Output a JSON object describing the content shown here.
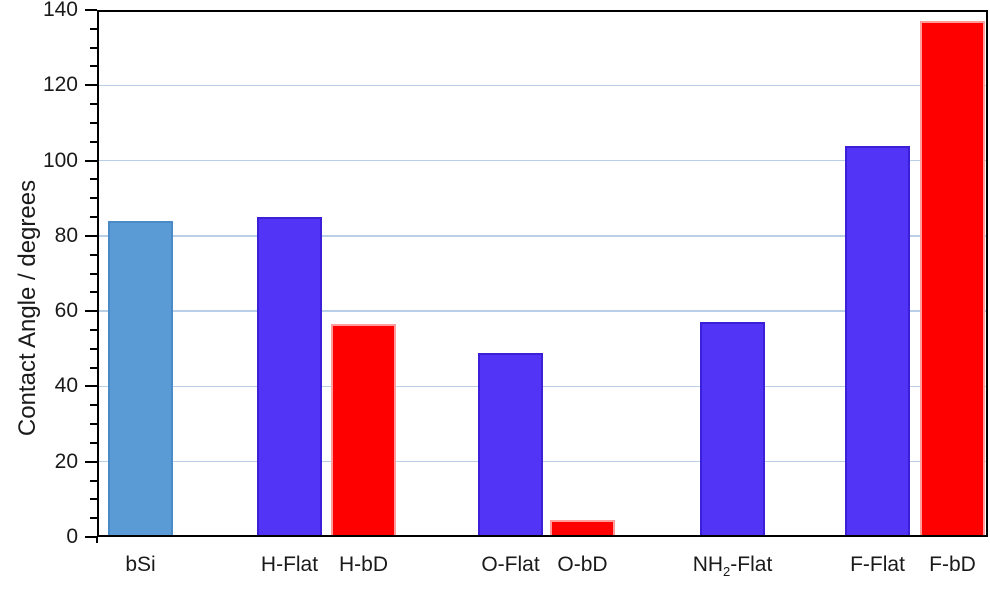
{
  "chart_data": {
    "type": "bar",
    "title": "",
    "xlabel": "",
    "ylabel": "Contact Angle / degrees",
    "ylim": [
      0,
      140
    ],
    "y_major_step": 20,
    "y_minor_step": 5,
    "y_tick_labels": [
      "0",
      "20",
      "40",
      "60",
      "80",
      "100",
      "120",
      "140"
    ],
    "grid": "horizontal light-blue gridlines at each major tick",
    "legend": null,
    "categories": [
      "bSi",
      "H-Flat",
      "H-bD",
      "O-Flat",
      "O-bD",
      "NH2-Flat",
      "F-Flat",
      "F-bD"
    ],
    "values": [
      84,
      85,
      56.5,
      49,
      4.5,
      57,
      104,
      137
    ],
    "bars": [
      {
        "label": "bSi",
        "value": 84,
        "series": "bSi",
        "color_key": "bsi"
      },
      {
        "label": "H-Flat",
        "value": 85,
        "series": "Flat",
        "color_key": "flat"
      },
      {
        "label": "H-bD",
        "value": 56.5,
        "series": "bD",
        "color_key": "bd"
      },
      {
        "label": "O-Flat",
        "value": 49,
        "series": "Flat",
        "color_key": "flat"
      },
      {
        "label": "O-bD",
        "value": 4.5,
        "series": "bD",
        "color_key": "bd"
      },
      {
        "label": "NH2-Flat",
        "label_parts": [
          {
            "t": "NH"
          },
          {
            "sub": "2"
          },
          {
            "t": "-Flat"
          }
        ],
        "value": 57,
        "series": "Flat",
        "color_key": "flat"
      },
      {
        "label": "F-Flat",
        "value": 104,
        "series": "Flat",
        "color_key": "flat"
      },
      {
        "label": "F-bD",
        "value": 137,
        "series": "bD",
        "color_key": "bd"
      }
    ],
    "colors": {
      "bsi_fill": "#5B9BD5",
      "bsi_border": "#4A8AC6",
      "flat_fill": "#5134F6",
      "flat_border": "#3B1FD9",
      "bd_fill": "#FF0000",
      "bd_border": "#FF9C9C",
      "gridline": "#B9CFE8",
      "axis": "#000000",
      "text": "#1A1A1A"
    }
  }
}
